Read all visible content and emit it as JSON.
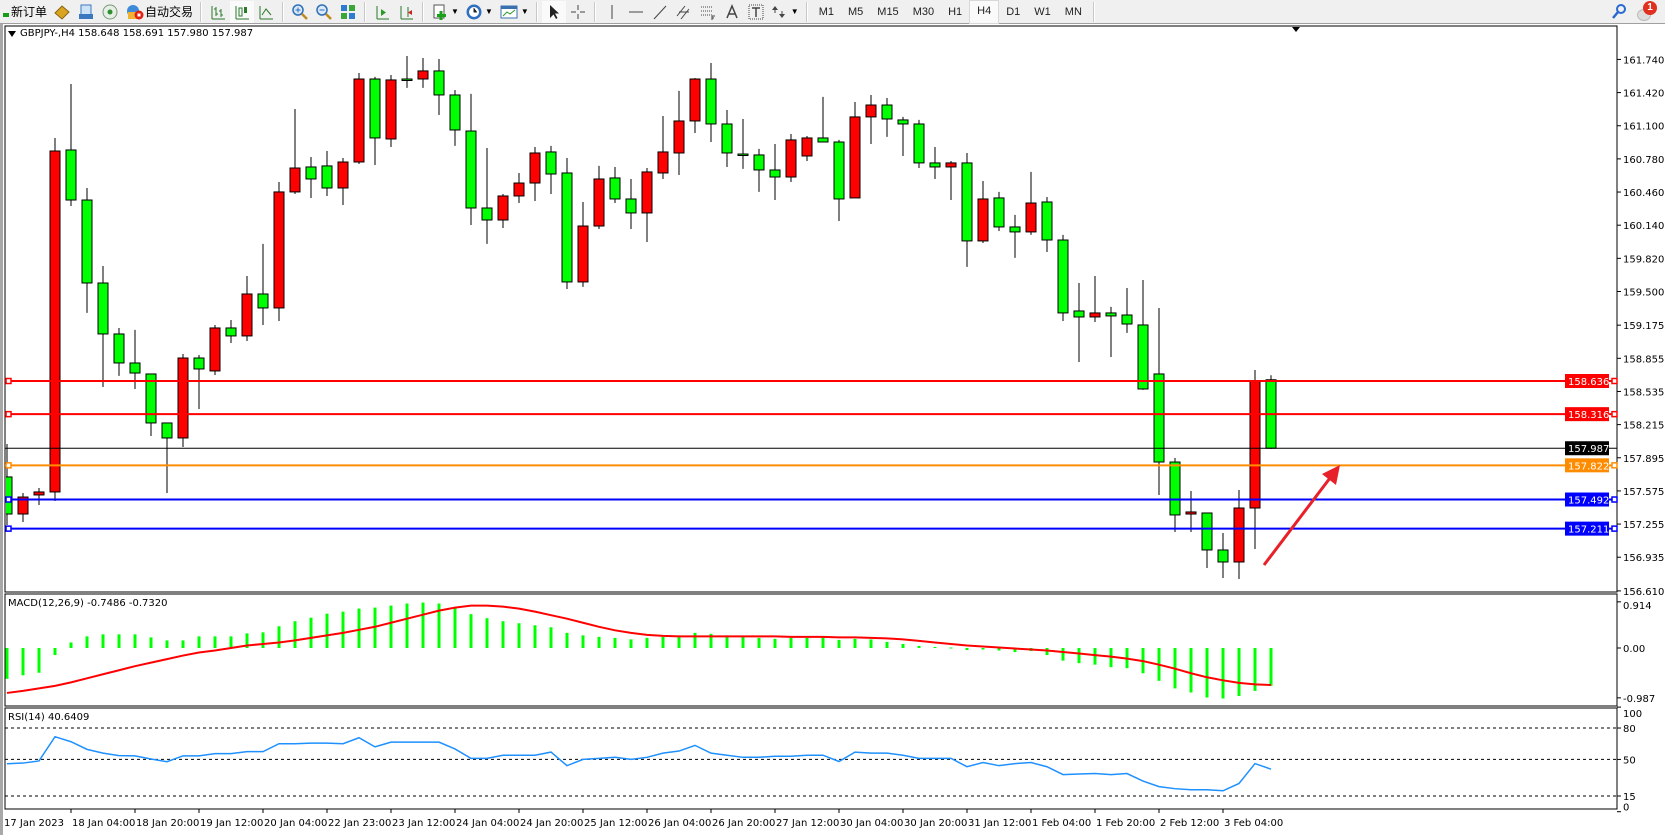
{
  "toolbar": {
    "new_order_label": "新订单",
    "auto_trade_label": "自动交易",
    "timeframes": [
      "M1",
      "M5",
      "M15",
      "M30",
      "H1",
      "H4",
      "D1",
      "W1",
      "MN"
    ],
    "active_timeframe": "H4",
    "notification_count": "1"
  },
  "chart": {
    "symbol_header": "GBPJPY-,H4  158.648 158.691 157.980 157.987",
    "macd_header": "MACD(12,26,9) -0.7486 -0.7320",
    "rsi_header": "RSI(14) 40.6409"
  },
  "colors": {
    "bull_candle": "#ff0000",
    "bear_candle": "#00ff00",
    "macd_histogram": "#00ff00",
    "macd_signal": "#ff0000",
    "rsi_line": "#1e90ff",
    "arrow": "#e8202a"
  },
  "chart_data": [
    {
      "type": "candlestick",
      "symbol": "GBPJPY-",
      "timeframe": "H4",
      "ohlc_columns": [
        "open",
        "high",
        "low",
        "close"
      ],
      "candles": [
        [
          157.71,
          158.028,
          157.246,
          157.352
        ],
        [
          157.352,
          157.555,
          157.275,
          157.516
        ],
        [
          157.536,
          157.603,
          157.439,
          157.565
        ],
        [
          157.565,
          160.982,
          157.478,
          160.856
        ],
        [
          160.866,
          161.503,
          160.325,
          160.383
        ],
        [
          160.383,
          160.499,
          159.293,
          159.582
        ],
        [
          159.582,
          159.746,
          158.578,
          159.09
        ],
        [
          159.09,
          159.148,
          158.685,
          158.81
        ],
        [
          158.81,
          159.129,
          158.559,
          158.713
        ],
        [
          158.704,
          158.704,
          158.105,
          158.231
        ],
        [
          158.231,
          158.231,
          157.555,
          158.086
        ],
        [
          158.086,
          158.897,
          157.999,
          158.858
        ],
        [
          158.858,
          158.887,
          158.366,
          158.752
        ],
        [
          158.733,
          159.177,
          158.694,
          159.148
        ],
        [
          159.148,
          159.225,
          159.003,
          159.071
        ],
        [
          159.071,
          159.65,
          159.022,
          159.476
        ],
        [
          159.476,
          159.959,
          159.177,
          159.341
        ],
        [
          159.341,
          160.557,
          159.215,
          160.461
        ],
        [
          160.461,
          161.262,
          160.441,
          160.692
        ],
        [
          160.702,
          160.798,
          160.403,
          160.586
        ],
        [
          160.712,
          160.856,
          160.422,
          160.499
        ],
        [
          160.499,
          160.789,
          160.335,
          160.75
        ],
        [
          160.75,
          161.609,
          160.731,
          161.551
        ],
        [
          161.551,
          161.571,
          160.721,
          160.982
        ],
        [
          160.972,
          161.59,
          160.895,
          161.542
        ],
        [
          161.551,
          161.773,
          161.465,
          161.546
        ],
        [
          161.551,
          161.754,
          161.465,
          161.629
        ],
        [
          161.629,
          161.744,
          161.204,
          161.397
        ],
        [
          161.397,
          161.445,
          160.905,
          161.059
        ],
        [
          161.049,
          161.407,
          160.142,
          160.306
        ],
        [
          160.306,
          160.885,
          159.959,
          160.19
        ],
        [
          160.19,
          160.441,
          160.113,
          160.422
        ],
        [
          160.422,
          160.644,
          160.354,
          160.547
        ],
        [
          160.547,
          160.895,
          160.374,
          160.837
        ],
        [
          160.847,
          160.905,
          160.441,
          160.634
        ],
        [
          160.644,
          160.789,
          159.524,
          159.592
        ],
        [
          159.592,
          160.364,
          159.544,
          160.132
        ],
        [
          160.132,
          160.712,
          160.103,
          160.586
        ],
        [
          160.596,
          160.702,
          160.354,
          160.393
        ],
        [
          160.393,
          160.586,
          160.103,
          160.258
        ],
        [
          160.258,
          160.692,
          159.978,
          160.654
        ],
        [
          160.644,
          161.194,
          160.586,
          160.847
        ],
        [
          160.837,
          161.436,
          160.625,
          161.146
        ],
        [
          161.146,
          161.561,
          161.03,
          161.551
        ],
        [
          161.551,
          161.706,
          160.943,
          161.117
        ],
        [
          161.117,
          161.252,
          160.702,
          160.837
        ],
        [
          160.827,
          161.165,
          160.683,
          160.825
        ],
        [
          160.818,
          160.876,
          160.461,
          160.673
        ],
        [
          160.673,
          160.924,
          160.383,
          160.605
        ],
        [
          160.605,
          161.02,
          160.557,
          160.963
        ],
        [
          160.808,
          161.001,
          160.76,
          160.982
        ],
        [
          160.982,
          161.378,
          160.943,
          160.943
        ],
        [
          160.943,
          160.963,
          160.181,
          160.393
        ],
        [
          160.403,
          161.329,
          160.403,
          161.185
        ],
        [
          161.185,
          161.397,
          160.924,
          161.3
        ],
        [
          161.3,
          161.368,
          160.992,
          161.165
        ],
        [
          161.156,
          161.185,
          160.808,
          161.117
        ],
        [
          161.117,
          161.156,
          160.692,
          160.741
        ],
        [
          160.741,
          160.895,
          160.586,
          160.702
        ],
        [
          160.702,
          160.76,
          160.383,
          160.741
        ],
        [
          160.741,
          160.837,
          159.737,
          159.988
        ],
        [
          159.988,
          160.567,
          159.968,
          160.393
        ],
        [
          160.403,
          160.461,
          160.084,
          160.123
        ],
        [
          160.123,
          160.239,
          159.824,
          160.075
        ],
        [
          160.075,
          160.654,
          160.046,
          160.354
        ],
        [
          160.364,
          160.412,
          159.881,
          159.997
        ],
        [
          159.997,
          160.046,
          159.215,
          159.293
        ],
        [
          159.312,
          159.582,
          158.82,
          159.254
        ],
        [
          159.254,
          159.65,
          159.206,
          159.293
        ],
        [
          159.293,
          159.351,
          158.868,
          159.264
        ],
        [
          159.273,
          159.534,
          159.1,
          159.186
        ],
        [
          159.177,
          159.611,
          158.55,
          158.559
        ],
        [
          158.704,
          159.341,
          157.536,
          157.854
        ],
        [
          157.854,
          157.893,
          157.179,
          157.343
        ],
        [
          157.352,
          157.574,
          157.179,
          157.372
        ],
        [
          157.362,
          157.362,
          156.831,
          157.005
        ],
        [
          157.005,
          157.169,
          156.735,
          156.889
        ],
        [
          156.889,
          157.584,
          156.725,
          157.41
        ],
        [
          157.41,
          158.742,
          157.014,
          158.636
        ],
        [
          158.648,
          158.691,
          157.98,
          157.987
        ]
      ],
      "price_ticks": [
        "161.740",
        "161.420",
        "161.100",
        "160.780",
        "160.460",
        "160.140",
        "159.820",
        "159.500",
        "159.175",
        "158.855",
        "158.535",
        "158.215",
        "157.895",
        "157.575",
        "157.255",
        "156.935",
        "156.610"
      ],
      "ylim": [
        156.61,
        161.85
      ],
      "time_labels": [
        "17 Jan 2023",
        "18 Jan 04:00",
        "18 Jan 20:00",
        "19 Jan 12:00",
        "20 Jan 04:00",
        "22 Jan 23:00",
        "23 Jan 12:00",
        "24 Jan 04:00",
        "24 Jan 20:00",
        "25 Jan 12:00",
        "26 Jan 04:00",
        "26 Jan 20:00",
        "27 Jan 12:00",
        "30 Jan 04:00",
        "30 Jan 20:00",
        "31 Jan 12:00",
        "1 Feb 04:00",
        "1 Feb 20:00",
        "2 Feb 12:00",
        "3 Feb 04:00"
      ],
      "horizontal_lines": [
        {
          "price": 158.636,
          "label": "158.636",
          "color": "#ff0000"
        },
        {
          "price": 158.316,
          "label": "158.316",
          "color": "#ff0000"
        },
        {
          "price": 157.822,
          "label": "157.822",
          "color": "#ff8c00"
        },
        {
          "price": 157.492,
          "label": "157.492",
          "color": "#0000ff"
        },
        {
          "price": 157.211,
          "label": "157.211",
          "color": "#0000ff"
        }
      ],
      "current_price": {
        "price": 157.987,
        "label": "157.987",
        "color": "#000000"
      },
      "annotation": "red up-arrow"
    },
    {
      "type": "bar",
      "name": "MACD(12,26,9)",
      "axis_labels": [
        "0.914",
        "0.00",
        "-0.987"
      ],
      "ylim": [
        -0.987,
        0.914
      ],
      "histogram": [
        -0.61,
        -0.54,
        -0.49,
        -0.14,
        0.11,
        0.23,
        0.27,
        0.27,
        0.27,
        0.21,
        0.15,
        0.15,
        0.23,
        0.23,
        0.23,
        0.29,
        0.31,
        0.43,
        0.53,
        0.6,
        0.68,
        0.72,
        0.78,
        0.8,
        0.84,
        0.88,
        0.9,
        0.88,
        0.8,
        0.67,
        0.59,
        0.53,
        0.49,
        0.45,
        0.41,
        0.3,
        0.25,
        0.22,
        0.2,
        0.17,
        0.2,
        0.22,
        0.25,
        0.3,
        0.28,
        0.25,
        0.22,
        0.2,
        0.18,
        0.2,
        0.2,
        0.22,
        0.16,
        0.18,
        0.17,
        0.12,
        0.08,
        0.04,
        0.02,
        0.01,
        -0.04,
        -0.03,
        -0.05,
        -0.08,
        -0.06,
        -0.14,
        -0.25,
        -0.3,
        -0.33,
        -0.38,
        -0.4,
        -0.5,
        -0.65,
        -0.8,
        -0.88,
        -0.98,
        -1.0,
        -0.95,
        -0.85,
        -0.7486
      ],
      "signal": [
        -0.89,
        -0.85,
        -0.8,
        -0.75,
        -0.68,
        -0.6,
        -0.52,
        -0.44,
        -0.36,
        -0.29,
        -0.22,
        -0.15,
        -0.09,
        -0.05,
        0.0,
        0.05,
        0.08,
        0.11,
        0.15,
        0.2,
        0.25,
        0.3,
        0.36,
        0.42,
        0.5,
        0.58,
        0.66,
        0.74,
        0.8,
        0.84,
        0.84,
        0.82,
        0.78,
        0.72,
        0.65,
        0.58,
        0.5,
        0.42,
        0.35,
        0.3,
        0.26,
        0.24,
        0.23,
        0.23,
        0.23,
        0.23,
        0.23,
        0.23,
        0.23,
        0.22,
        0.22,
        0.22,
        0.21,
        0.21,
        0.2,
        0.19,
        0.17,
        0.14,
        0.11,
        0.08,
        0.05,
        0.03,
        0.01,
        -0.01,
        -0.03,
        -0.05,
        -0.08,
        -0.11,
        -0.14,
        -0.17,
        -0.21,
        -0.26,
        -0.33,
        -0.41,
        -0.5,
        -0.58,
        -0.64,
        -0.69,
        -0.72,
        -0.732
      ]
    },
    {
      "type": "line",
      "name": "RSI(14)",
      "axis_labels": [
        "100",
        "80",
        "50",
        "15",
        "0"
      ],
      "levels": [
        80,
        50,
        15
      ],
      "ylim": [
        0,
        100
      ],
      "values": [
        45.9,
        46.5,
        48.5,
        71.7,
        66.9,
        59.6,
        56,
        53.6,
        53.4,
        50.4,
        47.8,
        53.4,
        53.4,
        55.5,
        55.5,
        57.4,
        57.4,
        65,
        65,
        65.5,
        65.5,
        65,
        70.7,
        62,
        66.5,
        66.5,
        66.5,
        66.5,
        60,
        51,
        51,
        54,
        54,
        54,
        57,
        44,
        50,
        51,
        52,
        50,
        52,
        56,
        58,
        63.4,
        56,
        54,
        52,
        52,
        53,
        53,
        54,
        54,
        48,
        57,
        56,
        56,
        54,
        51,
        51,
        51,
        43,
        47,
        44,
        46,
        47,
        43,
        35.5,
        36,
        36.5,
        35.5,
        36.5,
        29.3,
        24,
        22,
        21,
        21,
        20,
        27,
        46,
        40.64
      ]
    }
  ]
}
